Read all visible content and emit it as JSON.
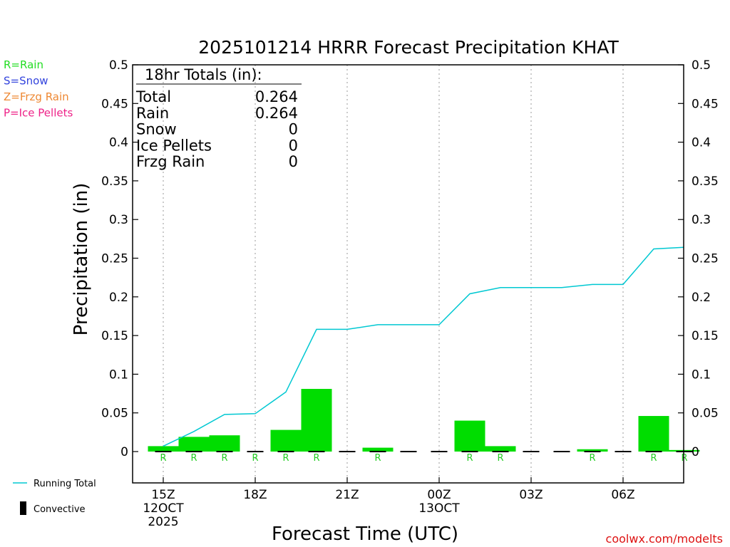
{
  "title": "2025101214 HRRR Forecast Precipitation KHAT",
  "ylabel": "Precipitation (in)",
  "xlabel": "Forecast Time (UTC)",
  "credit": "coolwx.com/modelts",
  "type_legend": [
    {
      "text": "R=Rain",
      "color": "#22dd22"
    },
    {
      "text": "S=Snow",
      "color": "#3344dd"
    },
    {
      "text": "Z=Frzg Rain",
      "color": "#ee8833"
    },
    {
      "text": "P=Ice Pellets",
      "color": "#ee2288"
    }
  ],
  "bottom_legend": {
    "running_total": "Running Total",
    "convective": "Convective",
    "running_total_color": "#00c8d2",
    "bar_color": "#00dd00"
  },
  "totals": {
    "header": "18hr Totals (in):",
    "rows": [
      {
        "label": "Total",
        "value": "0.264"
      },
      {
        "label": "Rain",
        "value": "0.264"
      },
      {
        "label": "Snow",
        "value": "0"
      },
      {
        "label": "Ice Pellets",
        "value": "0"
      },
      {
        "label": "Frzg Rain",
        "value": "0"
      }
    ]
  },
  "chart_data": {
    "type": "bar",
    "title": "2025101214 HRRR Forecast Precipitation KHAT",
    "xlabel": "Forecast Time (UTC)",
    "ylabel": "Precipitation (in)",
    "ylim": [
      -0.04,
      0.5
    ],
    "yticks": [
      0,
      0.05,
      0.1,
      0.15,
      0.2,
      0.25,
      0.3,
      0.35,
      0.4,
      0.45,
      0.5
    ],
    "ytick_labels": [
      "0",
      "0.05",
      "0.1",
      "0.15",
      "0.2",
      "0.25",
      "0.3",
      "0.35",
      "0.4",
      "0.45",
      "0.5"
    ],
    "xlim_hours": [
      14,
      32
    ],
    "xticks": [
      {
        "hour": 15,
        "lines": [
          "15Z",
          "12OCT",
          "2025"
        ]
      },
      {
        "hour": 18,
        "lines": [
          "18Z"
        ]
      },
      {
        "hour": 21,
        "lines": [
          "21Z"
        ]
      },
      {
        "hour": 24,
        "lines": [
          "00Z",
          "13OCT"
        ]
      },
      {
        "hour": 27,
        "lines": [
          "03Z"
        ]
      },
      {
        "hour": 30,
        "lines": [
          "06Z"
        ]
      }
    ],
    "hours": [
      15,
      16,
      17,
      18,
      19,
      20,
      21,
      22,
      23,
      24,
      25,
      26,
      27,
      28,
      29,
      30,
      31,
      32
    ],
    "series": [
      {
        "name": "Rain",
        "type": "bar",
        "values": [
          0.007,
          0.019,
          0.021,
          0.0,
          0.028,
          0.081,
          0.0,
          0.005,
          0.0,
          0.0,
          0.04,
          0.007,
          0.0,
          0.0,
          0.003,
          0.0,
          0.046,
          0.002
        ]
      },
      {
        "name": "Running Total",
        "type": "line",
        "values": [
          0.007,
          0.026,
          0.048,
          0.049,
          0.077,
          0.158,
          0.158,
          0.164,
          0.164,
          0.164,
          0.204,
          0.212,
          0.212,
          0.212,
          0.216,
          0.216,
          0.262,
          0.264
        ]
      }
    ],
    "precip_type_labels": [
      "R",
      "R",
      "R",
      "R",
      "R",
      "R",
      "",
      "R",
      "",
      "",
      "R",
      "R",
      "",
      "",
      "R",
      "",
      "R",
      "R"
    ],
    "grid": "vertical dotted"
  }
}
